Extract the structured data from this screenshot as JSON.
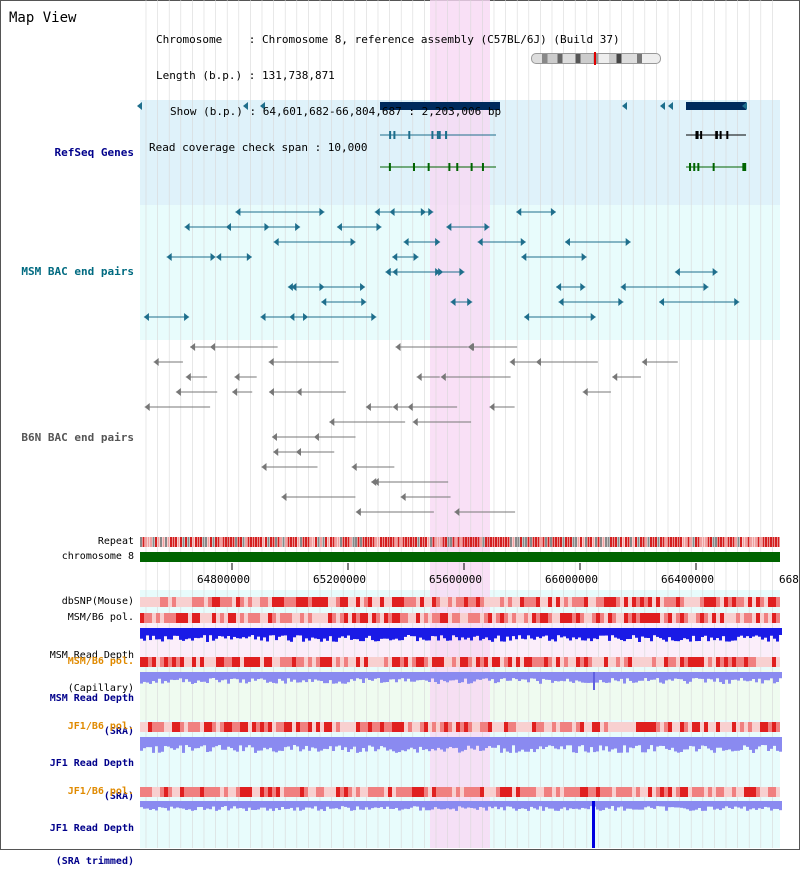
{
  "title": "Map View",
  "info": {
    "chromosome": "Chromosome    : Chromosome 8, reference assembly (C57BL/6J) (Build 37)",
    "length": "Length (b.p.) : 131,738,871",
    "show": "Show (b.p.) : 64,601,682-66,804,687 : 2,203,006 bp",
    "coverage": "Read coverage check span : 10,000"
  },
  "tracks": {
    "refseq": "RefSeq Genes",
    "msm_bac": "MSM BAC end pairs",
    "b6n_bac": "B6N BAC end pairs",
    "repeat": "Repeat",
    "chromosome": "chromosome 8",
    "dbsnp": "dbSNP(Mouse)",
    "msm_b6_pol_1": "MSM/B6 pol.",
    "msm_read_depth_cap_1": "MSM Read Depth",
    "msm_read_depth_cap_2": "(Capillary)",
    "msm_b6_pol_2": "MSM/B6 pol.",
    "msm_read_depth_sra_1": "MSM Read Depth",
    "msm_read_depth_sra_2": "(SRA)",
    "jf1_b6_pol_1": "JF1/B6 pol.",
    "jf1_read_depth_sra_1": "JF1 Read Depth",
    "jf1_read_depth_sra_2": "(SRA)",
    "jf1_b6_pol_2": "JF1/B6 pol.",
    "jf1_read_depth_trim_1": "JF1 Read Depth",
    "jf1_read_depth_trim_2": "(SRA trimmed)"
  },
  "axis_ticks": [
    "64800000",
    "65200000",
    "65600000",
    "66000000",
    "66400000",
    "668"
  ],
  "colors": {
    "refseq_bg": "#dff2fa",
    "msm_bg": "#e8fcfc",
    "highlight": "#f8d8f4",
    "chrom_bar": "#006400",
    "gene_dark": "#002a5c",
    "msm_line": "#1e6e8c",
    "b6n_line": "#777777",
    "label_blue": "#00008b",
    "label_teal": "#006a80",
    "label_orange": "#e08a00",
    "depth_blue": "#1a1ae6",
    "depth_light": "#8a8af0"
  }
}
